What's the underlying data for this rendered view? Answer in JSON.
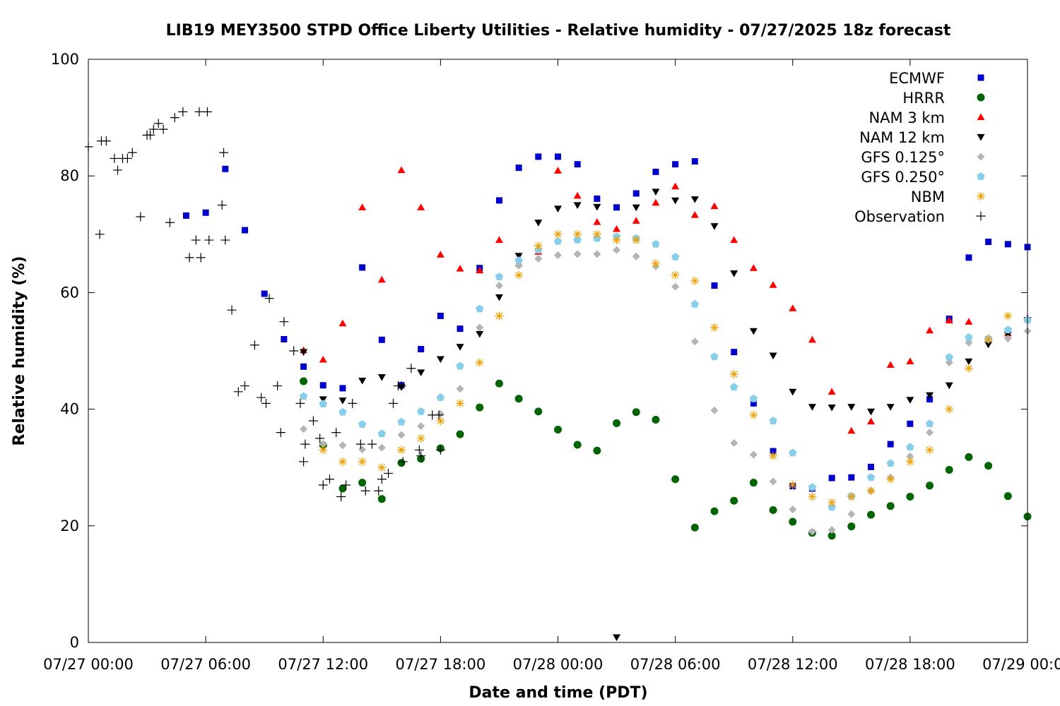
{
  "chart_data": {
    "type": "scatter",
    "title": "LIB19 MEY3500 STPD Office Liberty Utilities - Relative humidity - 07/27/2025 18z forecast",
    "xlabel": "Date and time (PDT)",
    "ylabel": "Relative humidity (%)",
    "ylim": [
      0,
      100
    ],
    "xlim_hours": [
      0,
      48
    ],
    "x_ticks": [
      "07/27 00:00",
      "07/27 06:00",
      "07/27 12:00",
      "07/27 18:00",
      "07/28 00:00",
      "07/28 06:00",
      "07/28 12:00",
      "07/28 18:00",
      "07/29 00:00"
    ],
    "y_ticks": [
      0,
      20,
      40,
      60,
      80,
      100
    ],
    "legend_position": "top-right",
    "grid": false,
    "series": [
      {
        "name": "ECMWF",
        "color": "#0000cc",
        "marker": "square",
        "x": [
          "07/27 05:00",
          "07/27 06:00",
          "07/27 07:00",
          "07/27 08:00",
          "07/27 09:00",
          "07/27 10:00",
          "07/27 11:00",
          "07/27 12:00",
          "07/27 13:00",
          "07/27 14:00",
          "07/27 15:00",
          "07/27 16:00",
          "07/27 17:00",
          "07/27 18:00",
          "07/27 19:00",
          "07/27 20:00",
          "07/27 21:00",
          "07/27 22:00",
          "07/27 23:00",
          "07/28 00:00",
          "07/28 01:00",
          "07/28 02:00",
          "07/28 03:00",
          "07/28 04:00",
          "07/28 05:00",
          "07/28 06:00",
          "07/28 07:00",
          "07/28 08:00",
          "07/28 09:00",
          "07/28 10:00",
          "07/28 11:00",
          "07/28 12:00",
          "07/28 13:00",
          "07/28 14:00",
          "07/28 15:00",
          "07/28 16:00",
          "07/28 17:00",
          "07/28 18:00",
          "07/28 19:00",
          "07/28 20:00",
          "07/28 21:00",
          "07/28 22:00",
          "07/28 23:00",
          "07/29 00:00"
        ],
        "y": [
          73.2,
          73.7,
          81.2,
          70.7,
          59.8,
          52.0,
          47.3,
          44.1,
          43.6,
          64.3,
          51.9,
          44.1,
          50.3,
          56.0,
          53.8,
          64.2,
          75.8,
          81.4,
          83.3,
          83.3,
          82.0,
          76.1,
          74.6,
          77.0,
          80.7,
          82.0,
          82.5,
          61.2,
          49.8,
          41.0,
          32.8,
          26.8,
          26.4,
          28.2,
          28.3,
          30.1,
          34.0,
          37.5,
          41.7,
          55.5,
          66.0,
          68.7,
          68.3,
          67.8
        ]
      },
      {
        "name": "HRRR",
        "color": "#006400",
        "marker": "circle",
        "x": [
          "07/27 11:00",
          "07/27 12:00",
          "07/27 13:00",
          "07/27 14:00",
          "07/27 15:00",
          "07/27 16:00",
          "07/27 17:00",
          "07/27 18:00",
          "07/27 19:00",
          "07/27 20:00",
          "07/27 21:00",
          "07/27 22:00",
          "07/27 23:00",
          "07/28 00:00",
          "07/28 01:00",
          "07/28 02:00",
          "07/28 03:00",
          "07/28 04:00",
          "07/28 05:00",
          "07/28 06:00",
          "07/28 07:00",
          "07/28 08:00",
          "07/28 09:00",
          "07/28 10:00",
          "07/28 11:00",
          "07/28 12:00",
          "07/28 13:00",
          "07/28 14:00",
          "07/28 15:00",
          "07/28 16:00",
          "07/28 17:00",
          "07/28 18:00",
          "07/28 19:00",
          "07/28 20:00",
          "07/28 21:00",
          "07/28 22:00",
          "07/28 23:00",
          "07/29 00:00"
        ],
        "y": [
          44.8,
          33.8,
          26.4,
          27.4,
          24.6,
          30.8,
          31.5,
          33.3,
          35.7,
          40.3,
          44.4,
          41.8,
          39.6,
          36.5,
          33.9,
          32.9,
          37.6,
          39.5,
          38.2,
          28.0,
          19.7,
          22.5,
          24.3,
          27.4,
          22.7,
          20.7,
          18.8,
          18.3,
          19.9,
          21.9,
          23.4,
          25.0,
          26.9,
          29.6,
          31.8,
          30.3,
          25.1,
          21.6
        ]
      },
      {
        "name": "NAM 3 km",
        "color": "#ff0000",
        "marker": "triangle-up",
        "x": [
          "07/27 11:00",
          "07/27 12:00",
          "07/27 13:00",
          "07/27 14:00",
          "07/27 15:00",
          "07/27 16:00",
          "07/27 17:00",
          "07/27 18:00",
          "07/27 19:00",
          "07/27 20:00",
          "07/27 21:00",
          "07/27 22:00",
          "07/27 23:00",
          "07/28 00:00",
          "07/28 01:00",
          "07/28 02:00",
          "07/28 03:00",
          "07/28 04:00",
          "07/28 05:00",
          "07/28 06:00",
          "07/28 07:00",
          "07/28 08:00",
          "07/28 09:00",
          "07/28 10:00",
          "07/28 11:00",
          "07/28 12:00",
          "07/28 13:00",
          "07/28 14:00",
          "07/28 15:00",
          "07/28 16:00",
          "07/28 17:00",
          "07/28 18:00",
          "07/28 19:00",
          "07/28 20:00",
          "07/28 21:00",
          "07/28 22:00",
          "07/28 23:00",
          "07/29 00:00"
        ],
        "y": [
          50.1,
          48.5,
          54.7,
          74.6,
          62.2,
          81.0,
          74.6,
          66.5,
          64.1,
          63.8,
          69.0,
          65.0,
          67.0,
          80.9,
          76.6,
          72.1,
          70.9,
          72.3,
          75.4,
          78.2,
          73.3,
          74.8,
          69.0,
          64.2,
          61.3,
          57.3,
          51.9,
          43.0,
          36.3,
          37.9,
          47.6,
          48.2,
          53.5,
          55.2,
          55.0,
          52.0,
          53.0,
          55.6
        ]
      },
      {
        "name": "NAM 12 km",
        "color": "#000000",
        "marker": "triangle-down",
        "x": [
          "07/27 11:00",
          "07/27 12:00",
          "07/27 13:00",
          "07/27 14:00",
          "07/27 15:00",
          "07/27 16:00",
          "07/27 17:00",
          "07/27 18:00",
          "07/27 19:00",
          "07/27 20:00",
          "07/27 21:00",
          "07/27 22:00",
          "07/27 23:00",
          "07/28 00:00",
          "07/28 01:00",
          "07/28 02:00",
          "07/28 03:00",
          "07/28 04:00",
          "07/28 05:00",
          "07/28 06:00",
          "07/28 07:00",
          "07/28 08:00",
          "07/28 09:00",
          "07/28 10:00",
          "07/28 11:00",
          "07/28 12:00",
          "07/28 13:00",
          "07/28 14:00",
          "07/28 15:00",
          "07/28 16:00",
          "07/28 17:00",
          "07/28 18:00",
          "07/28 19:00",
          "07/28 20:00",
          "07/28 21:00",
          "07/28 22:00",
          "07/28 23:00",
          "07/29 00:00"
        ],
        "y": [
          49.8,
          41.7,
          41.5,
          44.9,
          45.5,
          43.8,
          46.3,
          48.6,
          50.7,
          52.9,
          59.2,
          66.3,
          72.0,
          74.4,
          75.0,
          74.7,
          0.9,
          74.6,
          77.3,
          75.8,
          76.0,
          71.4,
          63.3,
          53.4,
          49.2,
          43.0,
          40.4,
          40.3,
          40.4,
          39.6,
          40.4,
          41.6,
          42.4,
          44.1,
          48.2,
          51.1,
          52.8,
          55.3
        ]
      },
      {
        "name": "GFS 0.125°",
        "color": "#b4b4b4",
        "marker": "diamond",
        "x": [
          "07/27 11:00",
          "07/27 12:00",
          "07/27 13:00",
          "07/27 14:00",
          "07/27 15:00",
          "07/27 16:00",
          "07/27 17:00",
          "07/27 18:00",
          "07/27 19:00",
          "07/27 20:00",
          "07/27 21:00",
          "07/27 22:00",
          "07/27 23:00",
          "07/28 00:00",
          "07/28 01:00",
          "07/28 02:00",
          "07/28 03:00",
          "07/28 04:00",
          "07/28 05:00",
          "07/28 06:00",
          "07/28 07:00",
          "07/28 08:00",
          "07/28 09:00",
          "07/28 10:00",
          "07/28 11:00",
          "07/28 12:00",
          "07/28 13:00",
          "07/28 14:00",
          "07/28 15:00",
          "07/28 16:00",
          "07/28 17:00",
          "07/28 18:00",
          "07/28 19:00",
          "07/28 20:00",
          "07/28 21:00",
          "07/28 22:00",
          "07/28 23:00",
          "07/29 00:00"
        ],
        "y": [
          36.6,
          34.0,
          33.8,
          33.1,
          33.4,
          35.6,
          37.1,
          39.2,
          43.5,
          54.0,
          61.2,
          64.6,
          65.8,
          66.4,
          66.6,
          66.6,
          67.3,
          66.2,
          64.5,
          61.0,
          51.6,
          39.8,
          34.2,
          32.2,
          27.6,
          22.8,
          19.0,
          19.3,
          22.0,
          26.0,
          28.3,
          31.9,
          36.0,
          48.0,
          51.4,
          51.9,
          52.1,
          53.4
        ]
      },
      {
        "name": "GFS 0.250°",
        "color": "#87ceeb",
        "marker": "pentagon",
        "x": [
          "07/27 11:00",
          "07/27 12:00",
          "07/27 13:00",
          "07/27 14:00",
          "07/27 15:00",
          "07/27 16:00",
          "07/27 17:00",
          "07/27 18:00",
          "07/27 19:00",
          "07/27 20:00",
          "07/27 21:00",
          "07/27 22:00",
          "07/27 23:00",
          "07/28 00:00",
          "07/28 01:00",
          "07/28 02:00",
          "07/28 03:00",
          "07/28 04:00",
          "07/28 05:00",
          "07/28 06:00",
          "07/28 07:00",
          "07/28 08:00",
          "07/28 09:00",
          "07/28 10:00",
          "07/28 11:00",
          "07/28 12:00",
          "07/28 13:00",
          "07/28 14:00",
          "07/28 15:00",
          "07/28 16:00",
          "07/28 17:00",
          "07/28 18:00",
          "07/28 19:00",
          "07/28 20:00",
          "07/28 21:00",
          "07/28 22:00",
          "07/28 23:00",
          "07/29 00:00"
        ],
        "y": [
          42.2,
          40.9,
          39.5,
          37.4,
          35.8,
          37.8,
          39.6,
          42.0,
          47.4,
          57.2,
          62.7,
          65.5,
          67.3,
          68.8,
          69.0,
          69.3,
          69.6,
          69.3,
          68.3,
          66.1,
          58.0,
          49.0,
          43.8,
          41.8,
          38.0,
          32.5,
          26.6,
          23.2,
          25.1,
          28.3,
          30.7,
          33.5,
          37.5,
          48.9,
          52.3,
          52.1,
          53.6,
          55.3
        ]
      },
      {
        "name": "NBM",
        "color": "#f0a000",
        "marker": "star",
        "x": [
          "07/27 12:00",
          "07/27 13:00",
          "07/27 14:00",
          "07/27 15:00",
          "07/27 16:00",
          "07/27 17:00",
          "07/27 18:00",
          "07/27 19:00",
          "07/27 20:00",
          "07/27 21:00",
          "07/27 22:00",
          "07/27 23:00",
          "07/28 00:00",
          "07/28 01:00",
          "07/28 02:00",
          "07/28 03:00",
          "07/28 04:00",
          "07/28 05:00",
          "07/28 06:00",
          "07/28 07:00",
          "07/28 08:00",
          "07/28 09:00",
          "07/28 10:00",
          "07/28 11:00",
          "07/28 12:00",
          "07/28 13:00",
          "07/28 14:00",
          "07/28 15:00",
          "07/28 16:00",
          "07/28 17:00",
          "07/28 18:00",
          "07/28 19:00",
          "07/28 20:00",
          "07/28 21:00",
          "07/28 22:00",
          "07/28 23:00"
        ],
        "y": [
          33,
          31,
          31,
          30,
          33,
          35,
          38,
          41,
          48,
          56,
          63,
          68,
          70,
          70,
          70,
          69,
          69,
          65,
          63,
          62,
          54,
          46,
          39,
          32,
          27,
          25,
          24,
          25,
          26,
          28,
          31,
          33,
          40,
          47,
          52,
          56
        ]
      },
      {
        "name": "Observation",
        "color": "#000000",
        "marker": "plus",
        "x": [
          "07/27 00:00",
          "07/27 00:35",
          "07/27 00:40",
          "07/27 00:55",
          "07/27 01:20",
          "07/27 01:30",
          "07/27 01:45",
          "07/27 02:00",
          "07/27 02:15",
          "07/27 02:40",
          "07/27 03:00",
          "07/27 03:10",
          "07/27 03:20",
          "07/27 03:35",
          "07/27 03:50",
          "07/27 04:10",
          "07/27 04:25",
          "07/27 04:50",
          "07/27 05:10",
          "07/27 05:30",
          "07/27 05:40",
          "07/27 05:45",
          "07/27 06:05",
          "07/27 06:10",
          "07/27 06:50",
          "07/27 06:55",
          "07/27 07:00",
          "07/27 07:20",
          "07/27 07:40",
          "07/27 08:00",
          "07/27 08:30",
          "07/27 08:50",
          "07/27 09:05",
          "07/27 09:15",
          "07/27 09:40",
          "07/27 09:50",
          "07/27 10:00",
          "07/27 10:30",
          "07/27 10:50",
          "07/27 11:00",
          "07/27 11:05",
          "07/27 11:30",
          "07/27 11:50",
          "07/27 12:00",
          "07/27 12:20",
          "07/27 12:40",
          "07/27 12:55",
          "07/27 13:10",
          "07/27 13:30",
          "07/27 13:55",
          "07/27 14:10",
          "07/27 14:30",
          "07/27 14:50",
          "07/27 15:00",
          "07/27 15:20",
          "07/27 15:35",
          "07/27 15:50",
          "07/27 16:00",
          "07/27 16:05",
          "07/27 16:30",
          "07/27 16:55",
          "07/27 17:00",
          "07/27 17:35",
          "07/27 17:55",
          "07/27 18:00"
        ],
        "y": [
          85,
          70,
          86,
          86,
          83,
          81,
          83,
          83,
          84,
          73,
          87,
          87,
          88,
          89,
          88,
          72,
          90,
          91,
          66,
          69,
          91,
          66,
          91,
          69,
          75,
          84,
          69,
          57,
          43,
          44,
          51,
          42,
          41,
          59,
          44,
          36,
          55,
          50,
          41,
          31,
          34,
          38,
          35,
          27,
          28,
          36,
          25,
          27,
          41,
          34,
          26,
          34,
          26,
          28,
          29,
          41,
          44,
          44,
          31,
          47,
          33,
          32,
          39,
          39,
          33
        ]
      }
    ]
  }
}
